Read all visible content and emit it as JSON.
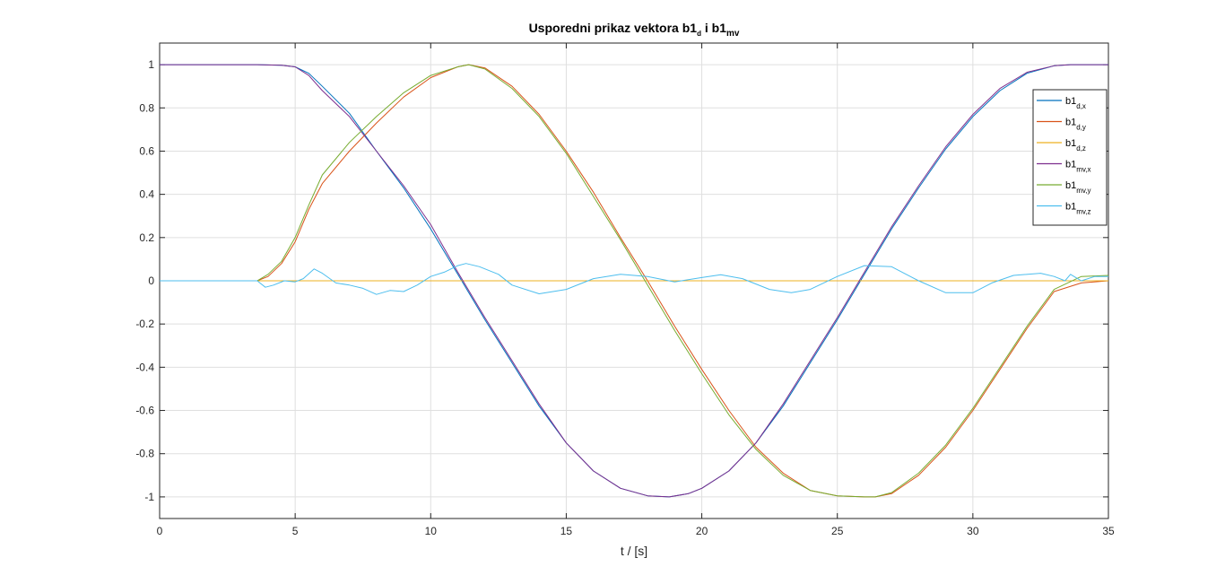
{
  "chart_data": {
    "type": "line",
    "title": {
      "main": "Usporedni prikaz vektora b1",
      "sub1": "d",
      "mid": " i b1",
      "sub2": "mv"
    },
    "xlabel": "t / [s]",
    "ylabel": "",
    "xlim": [
      0,
      35
    ],
    "ylim": [
      -1.1,
      1.1
    ],
    "xticks": [
      0,
      5,
      10,
      15,
      20,
      25,
      30,
      35
    ],
    "yticks": [
      -1,
      -0.8,
      -0.6,
      -0.4,
      -0.2,
      0,
      0.2,
      0.4,
      0.6,
      0.8,
      1
    ],
    "grid": true,
    "legend_position": "top-right",
    "series": [
      {
        "name": "b1",
        "sub": "d,x",
        "color": "#0072BD",
        "x": [
          0,
          3.6,
          4.5,
          5,
          5.5,
          6,
          7,
          8,
          9,
          10,
          11,
          12,
          13,
          14,
          15,
          16,
          17,
          18,
          18.8,
          19.5,
          20,
          21,
          22,
          23,
          24,
          25,
          26,
          27,
          28,
          29,
          30,
          31,
          32,
          33,
          33.6,
          34,
          35
        ],
        "y": [
          1,
          1,
          0.997,
          0.99,
          0.96,
          0.9,
          0.775,
          0.6,
          0.43,
          0.24,
          0.03,
          -0.18,
          -0.38,
          -0.58,
          -0.75,
          -0.88,
          -0.96,
          -0.995,
          -1,
          -0.985,
          -0.96,
          -0.88,
          -0.75,
          -0.58,
          -0.38,
          -0.18,
          0.03,
          0.24,
          0.43,
          0.61,
          0.76,
          0.88,
          0.96,
          0.995,
          1,
          1,
          1
        ]
      },
      {
        "name": "b1",
        "sub": "d,y",
        "color": "#D95319",
        "x": [
          0,
          3.6,
          4,
          4.5,
          5,
          5.5,
          6,
          7,
          8,
          9,
          10,
          11,
          11.4,
          12,
          13,
          14,
          15,
          16,
          17,
          18,
          19,
          20,
          21,
          22,
          23,
          24,
          25,
          26,
          26.4,
          27,
          28,
          29,
          30,
          31,
          32,
          33,
          34,
          35
        ],
        "y": [
          0,
          0,
          0.02,
          0.08,
          0.18,
          0.33,
          0.45,
          0.6,
          0.73,
          0.85,
          0.94,
          0.99,
          1,
          0.985,
          0.9,
          0.77,
          0.6,
          0.41,
          0.2,
          0,
          -0.21,
          -0.41,
          -0.6,
          -0.77,
          -0.89,
          -0.97,
          -0.995,
          -1,
          -1,
          -0.985,
          -0.9,
          -0.77,
          -0.6,
          -0.41,
          -0.22,
          -0.05,
          -0.01,
          0
        ]
      },
      {
        "name": "b1",
        "sub": "d,z",
        "color": "#EDB120",
        "x": [
          0,
          35
        ],
        "y": [
          0,
          0
        ]
      },
      {
        "name": "b1",
        "sub": "mv,x",
        "color": "#7E2F8E",
        "x": [
          0,
          3.6,
          4.5,
          5,
          5.5,
          6,
          7,
          8,
          9,
          10,
          11,
          12,
          13,
          14,
          15,
          16,
          17,
          18,
          18.8,
          19.5,
          20,
          21,
          22,
          23,
          24,
          25,
          26,
          27,
          28,
          29,
          30,
          31,
          32,
          33,
          33.6,
          34,
          35
        ],
        "y": [
          1,
          1,
          0.997,
          0.99,
          0.95,
          0.88,
          0.76,
          0.6,
          0.44,
          0.26,
          0.04,
          -0.17,
          -0.37,
          -0.57,
          -0.75,
          -0.88,
          -0.96,
          -0.995,
          -1,
          -0.985,
          -0.96,
          -0.88,
          -0.75,
          -0.57,
          -0.37,
          -0.17,
          0.04,
          0.25,
          0.44,
          0.62,
          0.77,
          0.89,
          0.965,
          0.995,
          1,
          1,
          1
        ]
      },
      {
        "name": "b1",
        "sub": "mv,y",
        "color": "#77AC30",
        "x": [
          0,
          3.6,
          4,
          4.5,
          5,
          5.5,
          6,
          7,
          8,
          9,
          10,
          11,
          11.4,
          12,
          13,
          14,
          15,
          16,
          17,
          18,
          19,
          20,
          21,
          22,
          23,
          24,
          25,
          26,
          26.4,
          27,
          28,
          29,
          30,
          31,
          32,
          33,
          34,
          35
        ],
        "y": [
          0,
          0,
          0.03,
          0.09,
          0.2,
          0.35,
          0.49,
          0.64,
          0.76,
          0.87,
          0.95,
          0.99,
          1,
          0.98,
          0.89,
          0.76,
          0.59,
          0.39,
          0.19,
          -0.02,
          -0.23,
          -0.43,
          -0.62,
          -0.78,
          -0.9,
          -0.97,
          -0.995,
          -1,
          -1,
          -0.98,
          -0.89,
          -0.76,
          -0.59,
          -0.4,
          -0.21,
          -0.04,
          0.02,
          0.025
        ]
      },
      {
        "name": "b1",
        "sub": "mv,z",
        "color": "#4DBEEE",
        "x": [
          0,
          3.6,
          3.9,
          4.2,
          4.6,
          5,
          5.3,
          5.7,
          6,
          6.5,
          7,
          7.5,
          8,
          8.5,
          9,
          9.5,
          10,
          10.5,
          11,
          11.3,
          11.8,
          12.5,
          13,
          14,
          15,
          16,
          17,
          18,
          19,
          20,
          20.7,
          21.5,
          22.5,
          23.3,
          24,
          25,
          26,
          27,
          28,
          29,
          30,
          30.7,
          31.5,
          32.5,
          33,
          33.4,
          33.6,
          33.8,
          34,
          34.5,
          35
        ],
        "y": [
          0,
          0,
          -0.03,
          -0.02,
          0,
          -0.005,
          0.01,
          0.055,
          0.035,
          -0.01,
          -0.02,
          -0.035,
          -0.063,
          -0.045,
          -0.05,
          -0.02,
          0.02,
          0.04,
          0.07,
          0.08,
          0.065,
          0.03,
          -0.02,
          -0.06,
          -0.04,
          0.01,
          0.03,
          0.02,
          -0.005,
          0.015,
          0.028,
          0.01,
          -0.04,
          -0.055,
          -0.04,
          0.02,
          0.07,
          0.065,
          0.0,
          -0.055,
          -0.055,
          -0.01,
          0.025,
          0.035,
          0.02,
          0.0,
          0.03,
          0.015,
          0.0,
          0.02,
          0.02
        ]
      }
    ]
  }
}
